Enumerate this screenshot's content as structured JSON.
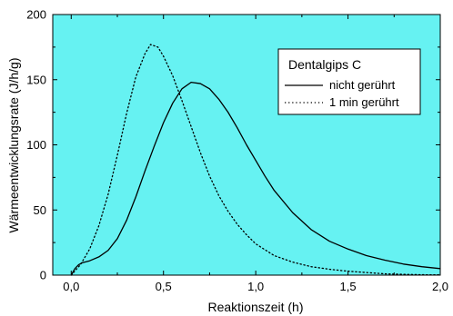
{
  "chart_data": {
    "type": "line",
    "xlabel": "Reaktionszeit (h)",
    "ylabel": "Wärmeentwicklungsrate (J/h/g)",
    "xlim": [
      -0.1,
      2.0
    ],
    "ylim": [
      0,
      200
    ],
    "xticks": [
      0.0,
      0.5,
      1.0,
      1.5,
      2.0
    ],
    "xtick_labels": [
      "0,0",
      "0,5",
      "1,0",
      "1,5",
      "2,0"
    ],
    "yticks": [
      0,
      50,
      100,
      150,
      200
    ],
    "ytick_labels": [
      "0",
      "50",
      "100",
      "150",
      "200"
    ],
    "background_color": "#66f2f2",
    "grid": false,
    "legend": {
      "title": "Dentalgips C",
      "placement": "top-right"
    },
    "series": [
      {
        "name": "nicht gerührt",
        "style": "solid",
        "color": "#000000",
        "points": [
          [
            0.0,
            0
          ],
          [
            0.02,
            5
          ],
          [
            0.04,
            8
          ],
          [
            0.06,
            9.5
          ],
          [
            0.1,
            11
          ],
          [
            0.15,
            14
          ],
          [
            0.2,
            19
          ],
          [
            0.25,
            28
          ],
          [
            0.3,
            42
          ],
          [
            0.35,
            60
          ],
          [
            0.4,
            80
          ],
          [
            0.45,
            99
          ],
          [
            0.5,
            117
          ],
          [
            0.55,
            132
          ],
          [
            0.6,
            143
          ],
          [
            0.65,
            148
          ],
          [
            0.7,
            147
          ],
          [
            0.75,
            143
          ],
          [
            0.8,
            135
          ],
          [
            0.85,
            125
          ],
          [
            0.9,
            113
          ],
          [
            0.95,
            100
          ],
          [
            1.0,
            88
          ],
          [
            1.05,
            76
          ],
          [
            1.1,
            65
          ],
          [
            1.2,
            48
          ],
          [
            1.3,
            35
          ],
          [
            1.4,
            26
          ],
          [
            1.5,
            20
          ],
          [
            1.6,
            15
          ],
          [
            1.7,
            11.5
          ],
          [
            1.8,
            8.5
          ],
          [
            1.9,
            6.5
          ],
          [
            2.0,
            5
          ]
        ]
      },
      {
        "name": "1 min gerührt",
        "style": "dotted",
        "color": "#000000",
        "points": [
          [
            0.0,
            0
          ],
          [
            0.05,
            8
          ],
          [
            0.1,
            20
          ],
          [
            0.15,
            38
          ],
          [
            0.2,
            62
          ],
          [
            0.25,
            92
          ],
          [
            0.3,
            124
          ],
          [
            0.35,
            152
          ],
          [
            0.4,
            170
          ],
          [
            0.43,
            177
          ],
          [
            0.47,
            175
          ],
          [
            0.5,
            168
          ],
          [
            0.55,
            153
          ],
          [
            0.6,
            134
          ],
          [
            0.65,
            114
          ],
          [
            0.7,
            94
          ],
          [
            0.75,
            76
          ],
          [
            0.8,
            61
          ],
          [
            0.85,
            49
          ],
          [
            0.9,
            39
          ],
          [
            0.95,
            31
          ],
          [
            1.0,
            24
          ],
          [
            1.1,
            15
          ],
          [
            1.2,
            10
          ],
          [
            1.3,
            6.5
          ],
          [
            1.4,
            4.5
          ],
          [
            1.5,
            3
          ],
          [
            1.6,
            2
          ],
          [
            1.7,
            1
          ],
          [
            1.8,
            0.6
          ],
          [
            1.9,
            0.3
          ],
          [
            2.0,
            0.2
          ]
        ]
      }
    ]
  }
}
